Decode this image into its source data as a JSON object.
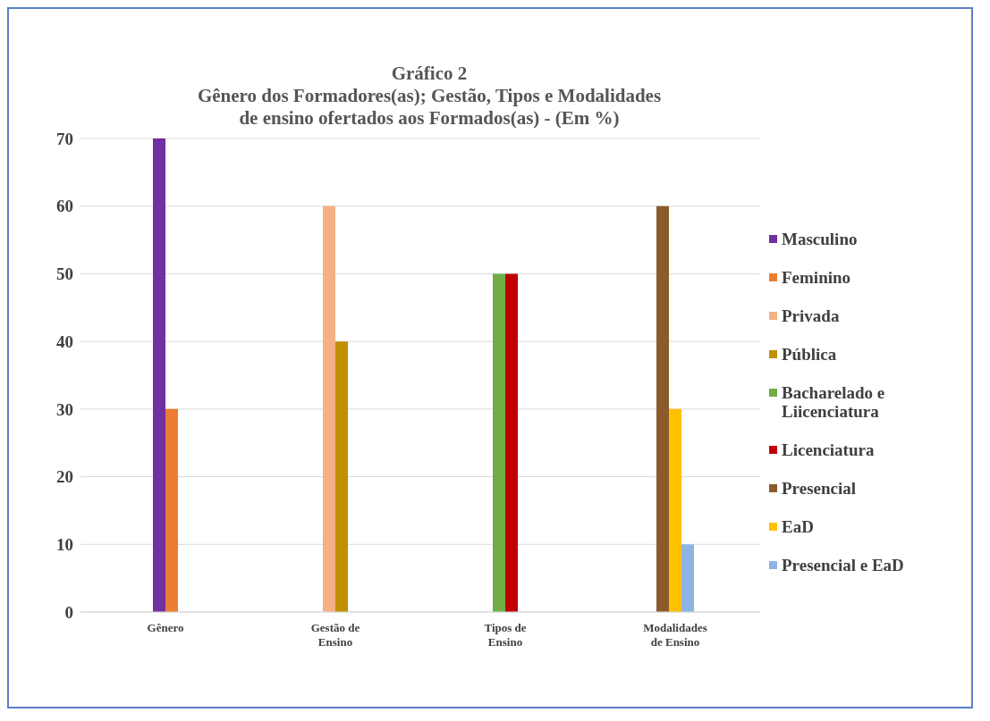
{
  "chart_data": {
    "type": "bar",
    "title": "Gráfico 2",
    "subtitle": "Gênero dos Formadores(as); Gestão, Tipos e Modalidades de ensino ofertados aos Formados(as) - (Em %)",
    "categories": [
      "Gênero",
      "Gestão de Ensino",
      "Tipos de Ensino",
      "Modalidades de Ensino"
    ],
    "series": [
      {
        "name": "Masculino",
        "color": "#7030a0",
        "values": [
          70,
          null,
          null,
          null
        ]
      },
      {
        "name": "Feminino",
        "color": "#ed7d31",
        "values": [
          30,
          null,
          null,
          null
        ]
      },
      {
        "name": "Privada",
        "color": "#f4b183",
        "values": [
          null,
          60,
          null,
          null
        ]
      },
      {
        "name": "Pública",
        "color": "#bf9000",
        "values": [
          null,
          40,
          null,
          null
        ]
      },
      {
        "name": "Bacharelado e Liicenciatura",
        "color": "#70ad47",
        "values": [
          null,
          null,
          50,
          null
        ]
      },
      {
        "name": "Licenciatura",
        "color": "#c00000",
        "values": [
          null,
          null,
          50,
          null
        ]
      },
      {
        "name": "Presencial",
        "color": "#8b5a2b",
        "values": [
          null,
          null,
          null,
          60
        ]
      },
      {
        "name": "EaD",
        "color": "#ffc000",
        "values": [
          null,
          null,
          null,
          30
        ]
      },
      {
        "name": "Presencial e EaD",
        "color": "#8eb4e3",
        "values": [
          null,
          null,
          null,
          10
        ]
      }
    ],
    "ylim": [
      0,
      70
    ],
    "yticks": [
      0,
      10,
      20,
      30,
      40,
      50,
      60,
      70
    ],
    "grid": "y",
    "legend": "right"
  }
}
